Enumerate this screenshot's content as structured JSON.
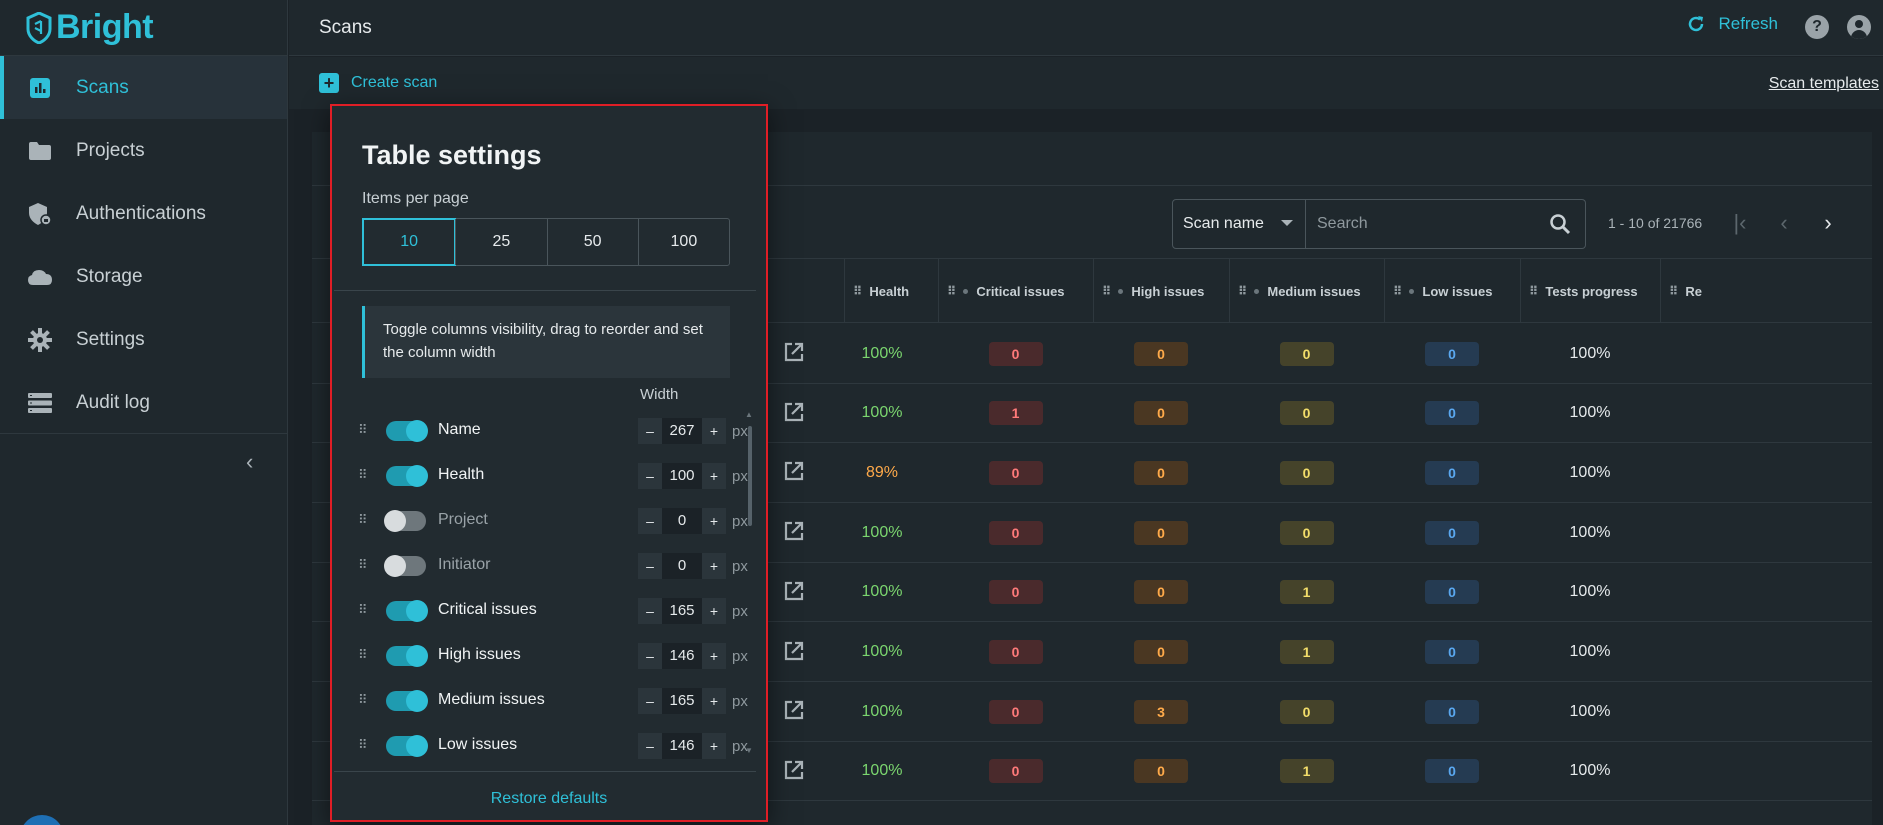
{
  "brand": {
    "name": "Bright",
    "color": "#2fc0d8"
  },
  "sidebar": {
    "items": [
      {
        "label": "Scans",
        "icon": "bar-chart-icon",
        "active": true
      },
      {
        "label": "Projects",
        "icon": "folder-icon"
      },
      {
        "label": "Authentications",
        "icon": "shield-lock-icon"
      },
      {
        "label": "Storage",
        "icon": "cloud-icon"
      },
      {
        "label": "Settings",
        "icon": "gear-icon"
      },
      {
        "label": "Audit log",
        "icon": "list-icon"
      }
    ]
  },
  "header": {
    "title": "Scans",
    "refresh_label": "Refresh",
    "help_glyph": "?"
  },
  "actions": {
    "create_scan": "Create scan",
    "scan_templates": "Scan templates"
  },
  "toolbar": {
    "filter_select": "Scan name",
    "search_placeholder": "Search",
    "pager_text": "1 - 10 of 21766"
  },
  "table": {
    "headers": [
      "Health",
      "Critical issues",
      "High issues",
      "Medium issues",
      "Low issues",
      "Tests progress",
      "Re"
    ],
    "rows": [
      {
        "health": "100%",
        "crit": "0",
        "high": "0",
        "med": "0",
        "low": "0",
        "progress": "100%",
        "health_color": "#7bd66f"
      },
      {
        "health": "100%",
        "crit": "1",
        "high": "0",
        "med": "0",
        "low": "0",
        "progress": "100%",
        "health_color": "#7bd66f"
      },
      {
        "health": "89%",
        "crit": "0",
        "high": "0",
        "med": "0",
        "low": "0",
        "progress": "100%",
        "health_color": "#ffaa4a"
      },
      {
        "health": "100%",
        "crit": "0",
        "high": "0",
        "med": "0",
        "low": "0",
        "progress": "100%",
        "health_color": "#7bd66f"
      },
      {
        "health": "100%",
        "crit": "0",
        "high": "0",
        "med": "1",
        "low": "0",
        "progress": "100%",
        "health_color": "#7bd66f"
      },
      {
        "health": "100%",
        "crit": "0",
        "high": "0",
        "med": "1",
        "low": "0",
        "progress": "100%",
        "health_color": "#7bd66f"
      },
      {
        "health": "100%",
        "crit": "0",
        "high": "3",
        "med": "0",
        "low": "0",
        "progress": "100%",
        "health_color": "#7bd66f"
      },
      {
        "health": "100%",
        "crit": "0",
        "high": "0",
        "med": "1",
        "low": "0",
        "progress": "100%",
        "health_color": "#7bd66f"
      }
    ]
  },
  "settings_panel": {
    "title": "Table settings",
    "items_per_page_label": "Items per page",
    "items_per_page_options": [
      "10",
      "25",
      "50",
      "100"
    ],
    "items_per_page_selected": "10",
    "hint": "Toggle columns visibility, drag to reorder and set the column width",
    "width_header": "Width",
    "unit": "px",
    "minus": "–",
    "plus": "+",
    "columns": [
      {
        "name": "Name",
        "visible": true,
        "width": "267"
      },
      {
        "name": "Health",
        "visible": true,
        "width": "100"
      },
      {
        "name": "Project",
        "visible": false,
        "width": "0"
      },
      {
        "name": "Initiator",
        "visible": false,
        "width": "0"
      },
      {
        "name": "Critical issues",
        "visible": true,
        "width": "165"
      },
      {
        "name": "High issues",
        "visible": true,
        "width": "146"
      },
      {
        "name": "Medium issues",
        "visible": true,
        "width": "165"
      },
      {
        "name": "Low issues",
        "visible": true,
        "width": "146"
      }
    ],
    "restore_defaults": "Restore defaults"
  }
}
